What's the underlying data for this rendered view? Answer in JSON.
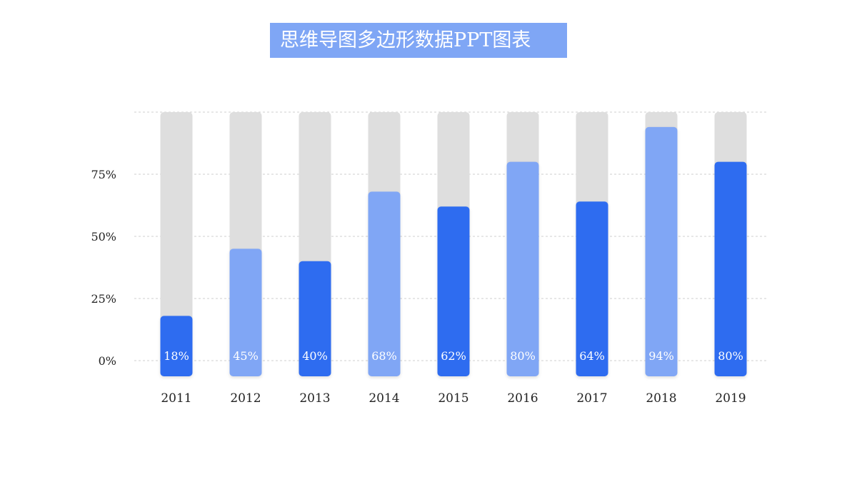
{
  "title": "思维导图多边形数据PPT图表",
  "colors": {
    "title_bg": "#7fa6f5",
    "dark_bar": "#2d6cf0",
    "light_bar": "#80a6f5",
    "track": "#dedede",
    "grid": "#cfcfcf"
  },
  "chart_data": {
    "type": "bar",
    "title": "思维导图多边形数据PPT图表",
    "xlabel": "",
    "ylabel": "",
    "categories": [
      "2011",
      "2012",
      "2013",
      "2014",
      "2015",
      "2016",
      "2017",
      "2018",
      "2019"
    ],
    "values": [
      18,
      45,
      40,
      68,
      62,
      80,
      64,
      94,
      80
    ],
    "data_labels": [
      "18%",
      "45%",
      "40%",
      "68%",
      "62%",
      "80%",
      "64%",
      "94%",
      "80%"
    ],
    "bar_shades": [
      "dark",
      "light",
      "dark",
      "light",
      "dark",
      "light",
      "dark",
      "light",
      "dark"
    ],
    "yticks": [
      0,
      25,
      50,
      75
    ],
    "ytick_labels": [
      "0%",
      "25%",
      "50%",
      "75%"
    ],
    "ylim": [
      0,
      100
    ],
    "grid": true,
    "legend": "none"
  }
}
